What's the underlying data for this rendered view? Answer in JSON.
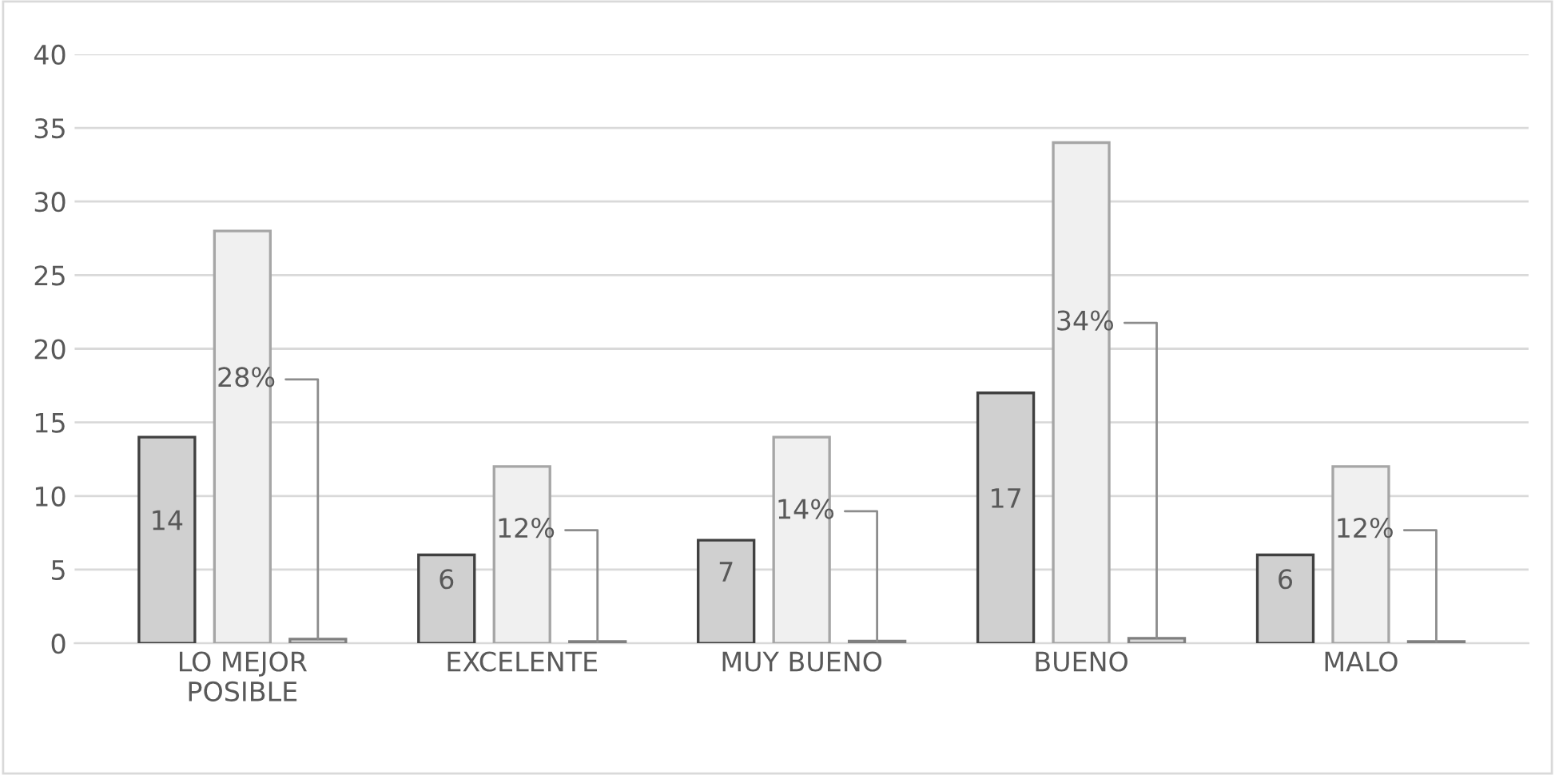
{
  "chart_data": {
    "type": "bar",
    "categories": [
      "LO MEJOR\nPOSIBLE",
      "EXCELENTE",
      "MUY BUENO",
      "BUENO",
      "MALO"
    ],
    "series": [
      {
        "color": "#d0d0d0",
        "values": [
          14,
          6,
          7,
          17,
          6
        ],
        "value_labels": [
          "14",
          "6",
          "7",
          "17",
          "6"
        ]
      },
      {
        "color": "#f0f0f0",
        "values": [
          28,
          12,
          14,
          34,
          12
        ]
      },
      {
        "color": "#d9d9d9",
        "values": [
          0.28,
          0.12,
          0.14,
          0.34,
          0.12
        ],
        "value_labels": [
          "28%",
          "12%",
          "14%",
          "34%",
          "12%"
        ]
      }
    ],
    "ylim": [
      0,
      40
    ],
    "yticks": [
      0,
      5,
      10,
      15,
      20,
      25,
      30,
      35,
      40
    ],
    "grid": "y",
    "legend": false
  }
}
